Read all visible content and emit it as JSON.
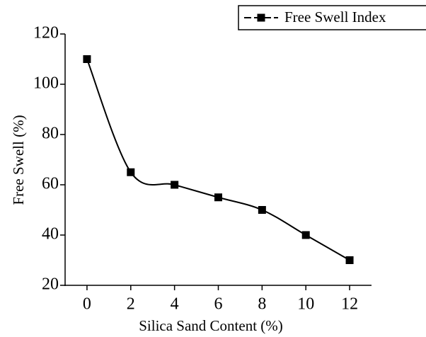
{
  "chart_data": {
    "type": "line",
    "x_label": "Silica Sand Content (%)",
    "y_label": "Free Swell (%)",
    "x": [
      0,
      2,
      4,
      6,
      8,
      10,
      12
    ],
    "series": [
      {
        "name": "Free Swell Index",
        "color": "#000000",
        "values": [
          110,
          65,
          60,
          55,
          50,
          40,
          30
        ]
      }
    ],
    "xlim": [
      -1,
      13
    ],
    "xticks": [
      0,
      2,
      4,
      6,
      8,
      10,
      12
    ],
    "ylim": [
      20,
      120
    ],
    "yticks": [
      20,
      40,
      60,
      80,
      100,
      120
    ],
    "legend": "top-right",
    "smooth": true
  }
}
